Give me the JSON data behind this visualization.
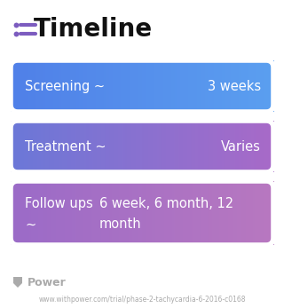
{
  "title": "Timeline",
  "title_fontsize": 20,
  "title_color": "#111111",
  "title_icon_color": "#7C5CBF",
  "background_color": "#ffffff",
  "rows": [
    {
      "label": "Screening ~",
      "value": "3 weeks",
      "color_left": "#5080E8",
      "color_right": "#5B9FF0",
      "text_color": "#ffffff",
      "label_fontsize": 10.5,
      "value_fontsize": 10.5,
      "multiline": false
    },
    {
      "label": "Treatment ~",
      "value": "Varies",
      "color_left": "#6B78D8",
      "color_right": "#A86AC8",
      "text_color": "#ffffff",
      "label_fontsize": 10.5,
      "value_fontsize": 10.5,
      "multiline": false
    },
    {
      "label": "Follow ups\n~",
      "value": "6 week, 6 month, 12\nmonth",
      "color_left": "#9B6BC8",
      "color_right": "#B878C0",
      "text_color": "#ffffff",
      "label_fontsize": 10.5,
      "value_fontsize": 10.5,
      "multiline": true
    }
  ],
  "footer_text": "Power",
  "footer_url": "www.withpower.com/trial/phase-2-tachycardia-6-2016-c0168",
  "footer_color": "#aaaaaa",
  "footer_fontsize": 5.5
}
